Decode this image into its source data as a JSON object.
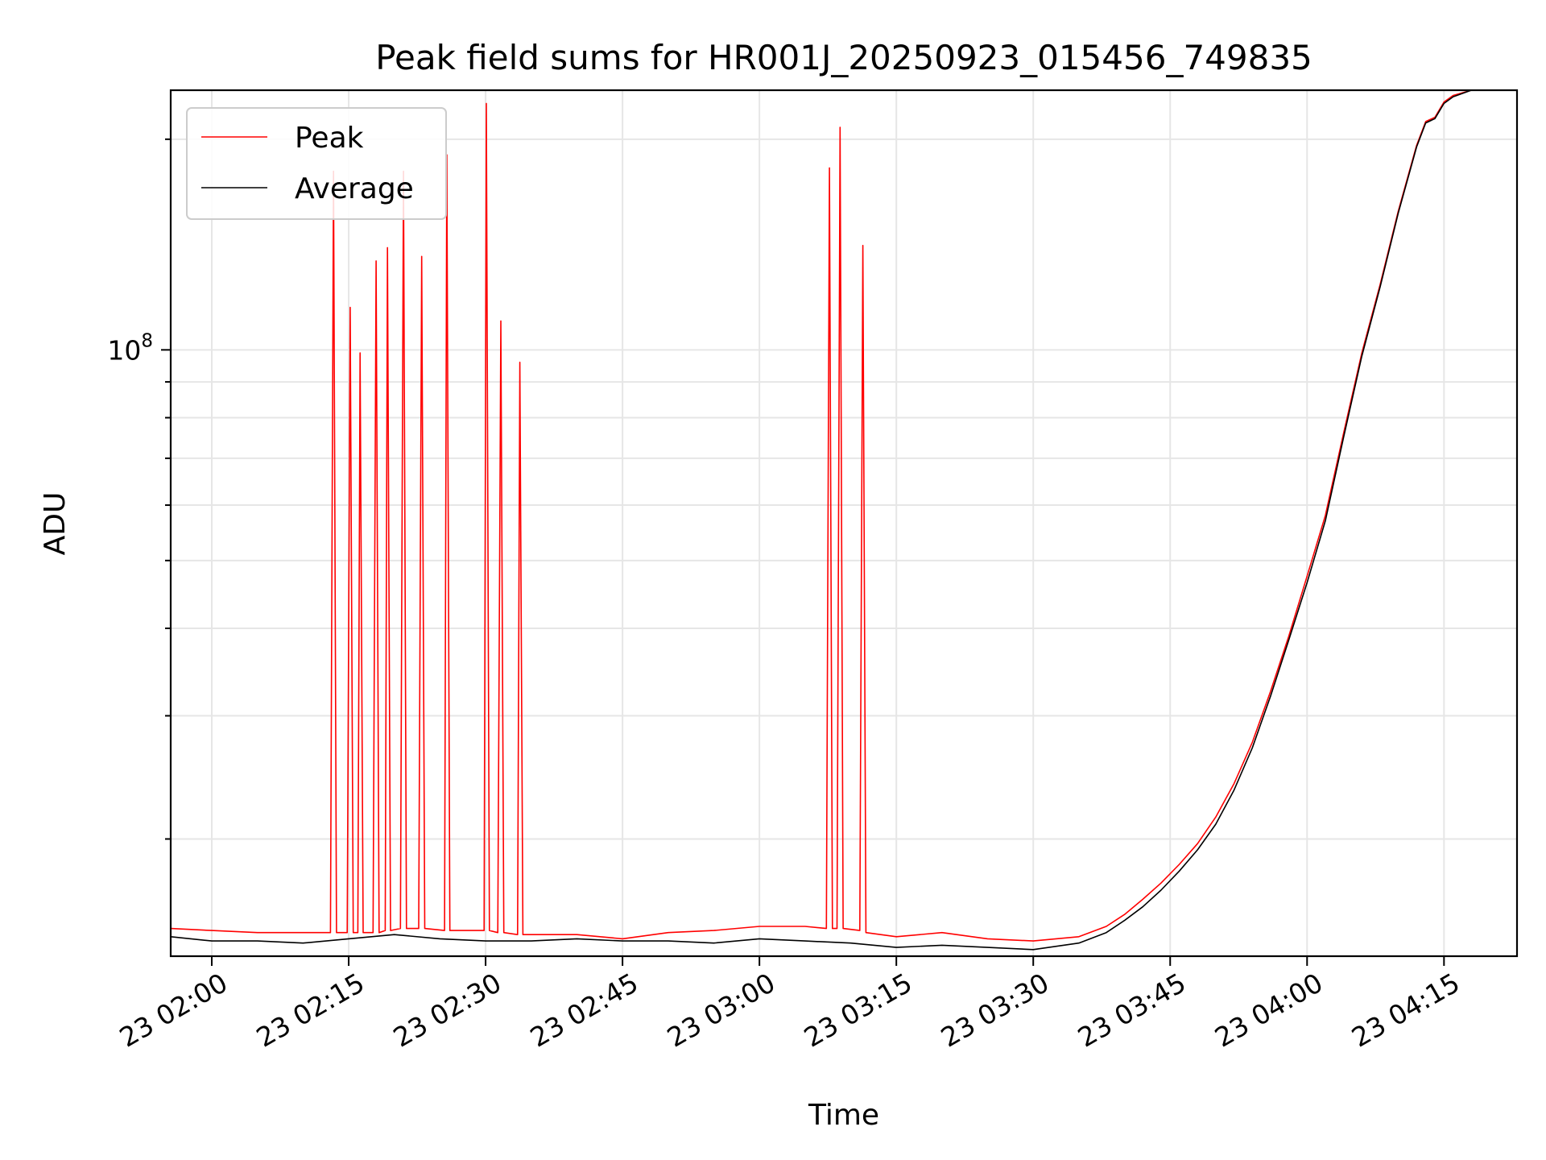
{
  "chart_data": {
    "type": "line",
    "title": "Peak field sums for HR001J_20250923_015456_749835",
    "xlabel": "Time",
    "ylabel": "ADU",
    "y_scale": "log",
    "grid": true,
    "legend_position": "top-left",
    "x_ticks": [
      {
        "t": "02:00",
        "label": "23 02:00"
      },
      {
        "t": "02:15",
        "label": "23 02:15"
      },
      {
        "t": "02:30",
        "label": "23 02:30"
      },
      {
        "t": "02:45",
        "label": "23 02:45"
      },
      {
        "t": "03:00",
        "label": "23 03:00"
      },
      {
        "t": "03:15",
        "label": "23 03:15"
      },
      {
        "t": "03:30",
        "label": "23 03:30"
      },
      {
        "t": "03:45",
        "label": "23 03:45"
      },
      {
        "t": "04:00",
        "label": "23 04:00"
      },
      {
        "t": "04:15",
        "label": "23 04:15"
      }
    ],
    "y_major_ticks": [
      {
        "value": 100000000,
        "label_base": "10",
        "label_exp": "8"
      }
    ],
    "y_minor_ticks": [
      20000000,
      30000000,
      40000000,
      50000000,
      60000000,
      70000000,
      80000000,
      90000000,
      200000000
    ],
    "xlim": [
      "01:55:30",
      "04:23:00"
    ],
    "ylim": [
      13600000,
      235000000
    ],
    "series": [
      {
        "name": "Peak",
        "color": "#ff0000",
        "points": [
          [
            "01:55:30",
            14900000
          ],
          [
            "02:00",
            14800000
          ],
          [
            "02:05",
            14700000
          ],
          [
            "02:10",
            14700000
          ],
          [
            "02:13:00",
            14700000
          ],
          [
            "02:13:20",
            180000000
          ],
          [
            "02:13:40",
            14700000
          ],
          [
            "02:14:50",
            14700000
          ],
          [
            "02:15:10",
            115000000
          ],
          [
            "02:15:30",
            14700000
          ],
          [
            "02:16:00",
            14700000
          ],
          [
            "02:16:15",
            99000000
          ],
          [
            "02:16:35",
            14700000
          ],
          [
            "02:17:40",
            14700000
          ],
          [
            "02:18:00",
            134000000
          ],
          [
            "02:18:20",
            14700000
          ],
          [
            "02:19:00",
            14800000
          ],
          [
            "02:19:15",
            140000000
          ],
          [
            "02:19:35",
            14800000
          ],
          [
            "02:20:40",
            14900000
          ],
          [
            "02:21:00",
            180000000
          ],
          [
            "02:21:20",
            14900000
          ],
          [
            "02:22:40",
            14900000
          ],
          [
            "02:23:00",
            136000000
          ],
          [
            "02:23:20",
            14900000
          ],
          [
            "02:25:30",
            14800000
          ],
          [
            "02:25:45",
            190000000
          ],
          [
            "02:26:05",
            14800000
          ],
          [
            "02:29:50",
            14800000
          ],
          [
            "02:30:05",
            225000000
          ],
          [
            "02:30:25",
            14800000
          ],
          [
            "02:31:20",
            14700000
          ],
          [
            "02:31:40",
            110000000
          ],
          [
            "02:32:00",
            14700000
          ],
          [
            "02:33:30",
            14600000
          ],
          [
            "02:33:45",
            96000000
          ],
          [
            "02:34:05",
            14600000
          ],
          [
            "02:40",
            14600000
          ],
          [
            "02:45",
            14400000
          ],
          [
            "02:50",
            14700000
          ],
          [
            "02:55",
            14800000
          ],
          [
            "03:00",
            15000000
          ],
          [
            "03:05",
            15000000
          ],
          [
            "03:07:20",
            14900000
          ],
          [
            "03:07:40",
            182000000
          ],
          [
            "03:08:00",
            14900000
          ],
          [
            "03:08:30",
            14900000
          ],
          [
            "03:08:50",
            208000000
          ],
          [
            "03:09:10",
            14900000
          ],
          [
            "03:11:00",
            14800000
          ],
          [
            "03:11:20",
            141000000
          ],
          [
            "03:11:40",
            14700000
          ],
          [
            "03:15",
            14500000
          ],
          [
            "03:20",
            14700000
          ],
          [
            "03:25",
            14400000
          ],
          [
            "03:30",
            14300000
          ],
          [
            "03:35",
            14500000
          ],
          [
            "03:38",
            15000000
          ],
          [
            "03:40",
            15600000
          ],
          [
            "03:42",
            16400000
          ],
          [
            "03:44",
            17300000
          ],
          [
            "03:46",
            18400000
          ],
          [
            "03:48",
            19700000
          ],
          [
            "03:50",
            21500000
          ],
          [
            "03:52",
            24000000
          ],
          [
            "03:54",
            27500000
          ],
          [
            "03:56",
            32500000
          ],
          [
            "03:58",
            39000000
          ],
          [
            "04:00",
            47500000
          ],
          [
            "04:02",
            58000000
          ],
          [
            "04:04",
            76000000
          ],
          [
            "04:06",
            99000000
          ],
          [
            "04:08",
            124000000
          ],
          [
            "04:10",
            158000000
          ],
          [
            "04:12",
            196000000
          ],
          [
            "04:13",
            212000000
          ],
          [
            "04:14",
            215000000
          ],
          [
            "04:15",
            226000000
          ],
          [
            "04:16",
            231000000
          ],
          [
            "04:18",
            235000000
          ]
        ]
      },
      {
        "name": "Average",
        "color": "#000000",
        "points": [
          [
            "01:55:30",
            14500000
          ],
          [
            "02:00",
            14300000
          ],
          [
            "02:05",
            14300000
          ],
          [
            "02:10",
            14200000
          ],
          [
            "02:15",
            14400000
          ],
          [
            "02:20",
            14600000
          ],
          [
            "02:25",
            14400000
          ],
          [
            "02:30",
            14300000
          ],
          [
            "02:35",
            14300000
          ],
          [
            "02:40",
            14400000
          ],
          [
            "02:45",
            14300000
          ],
          [
            "02:50",
            14300000
          ],
          [
            "02:55",
            14200000
          ],
          [
            "03:00",
            14400000
          ],
          [
            "03:05",
            14300000
          ],
          [
            "03:10",
            14200000
          ],
          [
            "03:15",
            14000000
          ],
          [
            "03:20",
            14100000
          ],
          [
            "03:25",
            14000000
          ],
          [
            "03:30",
            13900000
          ],
          [
            "03:35",
            14200000
          ],
          [
            "03:38",
            14700000
          ],
          [
            "03:40",
            15300000
          ],
          [
            "03:42",
            16000000
          ],
          [
            "03:44",
            16900000
          ],
          [
            "03:46",
            18000000
          ],
          [
            "03:48",
            19300000
          ],
          [
            "03:50",
            21000000
          ],
          [
            "03:52",
            23500000
          ],
          [
            "03:54",
            27000000
          ],
          [
            "03:56",
            32000000
          ],
          [
            "03:58",
            38500000
          ],
          [
            "04:00",
            46500000
          ],
          [
            "04:02",
            57000000
          ],
          [
            "04:04",
            75000000
          ],
          [
            "04:06",
            98000000
          ],
          [
            "04:08",
            123000000
          ],
          [
            "04:10",
            157000000
          ],
          [
            "04:12",
            195000000
          ],
          [
            "04:13",
            211000000
          ],
          [
            "04:14",
            214000000
          ],
          [
            "04:15",
            225000000
          ],
          [
            "04:16",
            230000000
          ],
          [
            "04:18",
            235000000
          ]
        ]
      }
    ]
  }
}
